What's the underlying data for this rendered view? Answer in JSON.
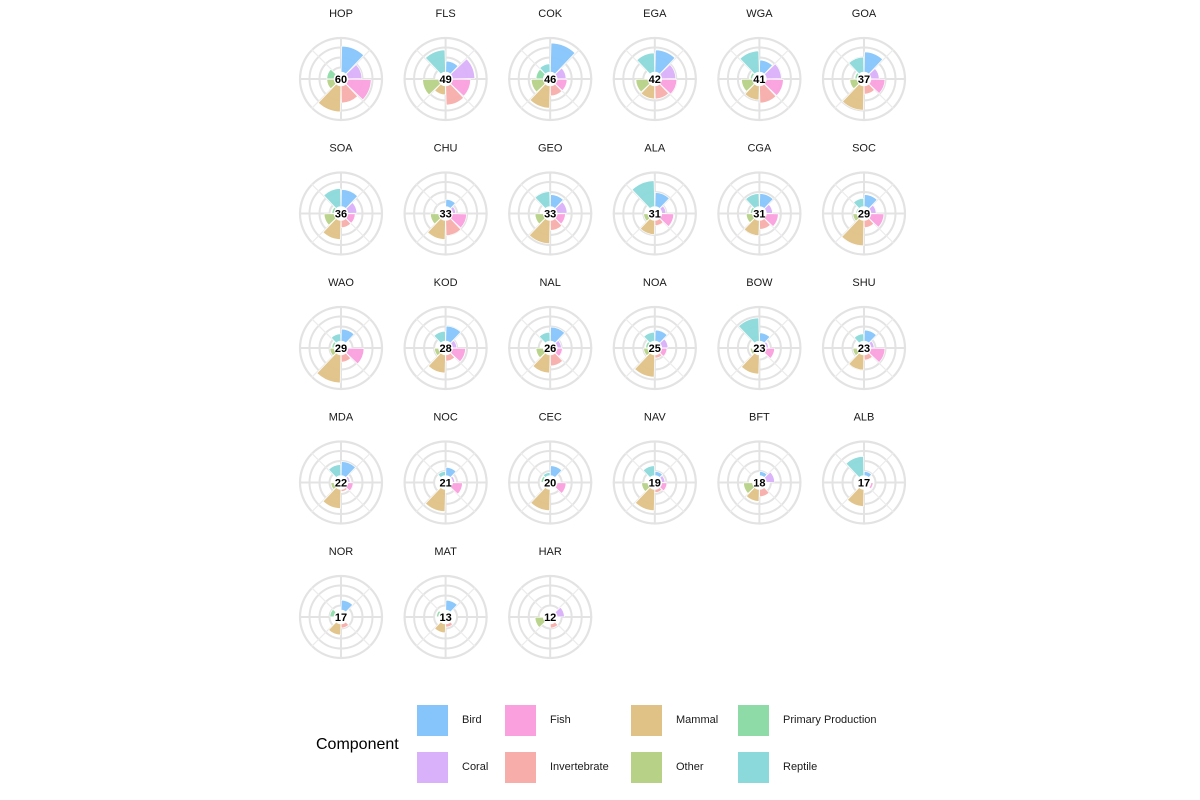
{
  "chart_data": {
    "type": "polar-bar",
    "layout": "facet-grid",
    "legend": {
      "title": "Component",
      "placement": "bottom",
      "entries": [
        "Bird",
        "Coral",
        "Fish",
        "Invertebrate",
        "Mammal",
        "Other",
        "Primary Production",
        "Reptile"
      ]
    },
    "components": [
      "Bird",
      "Coral",
      "Fish",
      "Invertebrate",
      "Mammal",
      "Other",
      "Primary Production",
      "Reptile"
    ],
    "colors": {
      "Bird": "#86c5fb",
      "Coral": "#d9b0fa",
      "Fish": "#faa0de",
      "Invertebrate": "#f7aeab",
      "Mammal": "#e0c286",
      "Other": "#b7d287",
      "Primary Production": "#8edba8",
      "Reptile": "#8bd9da"
    },
    "radial_range": [
      0,
      100
    ],
    "grid": true,
    "panels": [
      {
        "name": "HOP",
        "label": "60",
        "values": [
          76,
          41,
          68,
          50,
          76,
          21,
          21,
          0
        ]
      },
      {
        "name": "FLS",
        "label": "49",
        "values": [
          32,
          65,
          53,
          56,
          26,
          47,
          0,
          65
        ]
      },
      {
        "name": "COK",
        "label": "46",
        "values": [
          85,
          26,
          29,
          29,
          65,
          35,
          21,
          24
        ]
      },
      {
        "name": "EGA",
        "label": "42",
        "values": [
          65,
          41,
          44,
          38,
          38,
          35,
          0,
          56
        ]
      },
      {
        "name": "WGA",
        "label": "41",
        "values": [
          35,
          44,
          50,
          50,
          41,
          32,
          6,
          62
        ]
      },
      {
        "name": "GOA",
        "label": "37",
        "values": [
          59,
          24,
          41,
          24,
          71,
          21,
          6,
          44
        ]
      },
      {
        "name": "SOA",
        "label": "36",
        "values": [
          50,
          26,
          21,
          21,
          56,
          29,
          6,
          53
        ]
      },
      {
        "name": "CHU",
        "label": "33",
        "values": [
          21,
          9,
          41,
          44,
          56,
          24,
          0,
          0
        ]
      },
      {
        "name": "GEO",
        "label": "33",
        "values": [
          35,
          29,
          24,
          29,
          68,
          24,
          0,
          44
        ]
      },
      {
        "name": "ALA",
        "label": "31",
        "values": [
          41,
          12,
          35,
          15,
          41,
          12,
          0,
          76
        ]
      },
      {
        "name": "CGA",
        "label": "31",
        "values": [
          38,
          18,
          35,
          26,
          44,
          18,
          6,
          38
        ]
      },
      {
        "name": "SOC",
        "label": "29",
        "values": [
          35,
          15,
          38,
          21,
          74,
          12,
          3,
          24
        ]
      },
      {
        "name": "WAO",
        "label": "29",
        "values": [
          35,
          0,
          47,
          21,
          82,
          12,
          6,
          21
        ]
      },
      {
        "name": "KOD",
        "label": "28",
        "values": [
          44,
          12,
          38,
          18,
          53,
          12,
          0,
          29
        ]
      },
      {
        "name": "NAL",
        "label": "26",
        "values": [
          41,
          12,
          15,
          32,
          53,
          21,
          0,
          26
        ]
      },
      {
        "name": "NOA",
        "label": "25",
        "values": [
          32,
          18,
          15,
          9,
          65,
          12,
          6,
          26
        ]
      },
      {
        "name": "BOW",
        "label": "23",
        "values": [
          24,
          6,
          24,
          0,
          56,
          6,
          0,
          68
        ]
      },
      {
        "name": "SHU",
        "label": "23",
        "values": [
          32,
          9,
          41,
          15,
          44,
          12,
          0,
          21
        ]
      },
      {
        "name": "MDA",
        "label": "22",
        "values": [
          41,
          6,
          15,
          6,
          56,
          9,
          0,
          32
        ]
      },
      {
        "name": "NOC",
        "label": "21",
        "values": [
          24,
          6,
          29,
          0,
          65,
          0,
          0,
          12
        ]
      },
      {
        "name": "CEC",
        "label": "20",
        "values": [
          29,
          0,
          26,
          0,
          62,
          0,
          6,
          9
        ]
      },
      {
        "name": "NAV",
        "label": "19",
        "values": [
          12,
          9,
          15,
          9,
          62,
          18,
          0,
          29
        ]
      },
      {
        "name": "BFT",
        "label": "18",
        "values": [
          12,
          24,
          0,
          21,
          35,
          26,
          0,
          0
        ]
      },
      {
        "name": "ALB",
        "label": "17",
        "values": [
          12,
          0,
          6,
          0,
          50,
          0,
          0,
          56
        ]
      },
      {
        "name": "NOR",
        "label": "17",
        "values": [
          29,
          0,
          0,
          12,
          32,
          0,
          12,
          0
        ]
      },
      {
        "name": "MAT",
        "label": "13",
        "values": [
          29,
          0,
          0,
          9,
          26,
          0,
          6,
          0
        ]
      },
      {
        "name": "HAR",
        "label": "12",
        "values": [
          0,
          21,
          0,
          12,
          0,
          24,
          0,
          0
        ]
      }
    ]
  }
}
